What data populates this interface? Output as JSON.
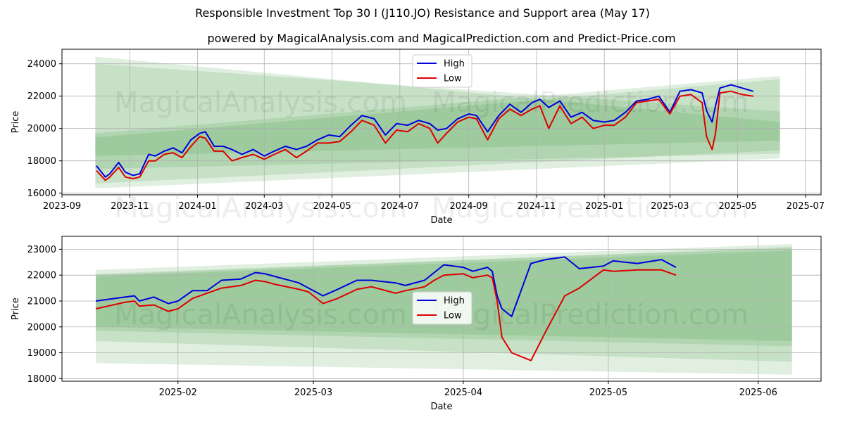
{
  "page": {
    "title": "Responsible Investment Top 30 I (J110.JO) Resistance and Support area (May 17)",
    "subtitle": "powered by MagicalAnalysis.com and MagicalPrediction.com and Predict-Price.com"
  },
  "watermarks": [
    "MagicalAnalysis.com",
    "MagicalPrediction.com"
  ],
  "colors": {
    "high": "#0000dd",
    "low": "#dd0000",
    "band": "#2e8b2e",
    "grid": "#b0b0b0"
  },
  "chart_data": [
    {
      "type": "line",
      "xlabel": "Date",
      "ylabel": "Price",
      "xlim": [
        "2023-09-01",
        "2025-07-15"
      ],
      "ylim": [
        15900,
        24900
      ],
      "grid": true,
      "legend": "upper-center",
      "legend_labels": {
        "high": "High",
        "low": "Low"
      },
      "xticks": [
        "2023-09",
        "2023-11",
        "2024-01",
        "2024-03",
        "2024-05",
        "2024-07",
        "2024-09",
        "2024-11",
        "2025-01",
        "2025-03",
        "2025-05",
        "2025-07"
      ],
      "yticks": [
        16000,
        18000,
        20000,
        22000,
        24000
      ],
      "series": [
        {
          "name": "High",
          "x": [
            "2023-10-02",
            "2023-10-10",
            "2023-10-14",
            "2023-10-22",
            "2023-10-28",
            "2023-11-04",
            "2023-11-10",
            "2023-11-18",
            "2023-11-24",
            "2023-12-02",
            "2023-12-10",
            "2023-12-18",
            "2023-12-26",
            "2024-01-03",
            "2024-01-08",
            "2024-01-16",
            "2024-01-24",
            "2024-02-01",
            "2024-02-10",
            "2024-02-20",
            "2024-03-01",
            "2024-03-10",
            "2024-03-20",
            "2024-03-30",
            "2024-04-08",
            "2024-04-18",
            "2024-04-28",
            "2024-05-08",
            "2024-05-18",
            "2024-05-28",
            "2024-06-08",
            "2024-06-18",
            "2024-06-28",
            "2024-07-08",
            "2024-07-18",
            "2024-07-28",
            "2024-08-04",
            "2024-08-12",
            "2024-08-22",
            "2024-09-01",
            "2024-09-08",
            "2024-09-18",
            "2024-09-28",
            "2024-10-08",
            "2024-10-18",
            "2024-10-28",
            "2024-11-04",
            "2024-11-12",
            "2024-11-22",
            "2024-12-02",
            "2024-12-12",
            "2024-12-22",
            "2025-01-01",
            "2025-01-10",
            "2025-01-20",
            "2025-01-30",
            "2025-02-09",
            "2025-02-19",
            "2025-03-01",
            "2025-03-10",
            "2025-03-20",
            "2025-03-30",
            "2025-04-03",
            "2025-04-08",
            "2025-04-11",
            "2025-04-15",
            "2025-04-25",
            "2025-05-05",
            "2025-05-15"
          ],
          "values": [
            17700,
            17000,
            17200,
            17900,
            17300,
            17100,
            17200,
            18400,
            18300,
            18600,
            18800,
            18500,
            19300,
            19700,
            19800,
            18900,
            18900,
            18700,
            18400,
            18700,
            18300,
            18600,
            18900,
            18700,
            18900,
            19300,
            19600,
            19500,
            20200,
            20800,
            20600,
            19600,
            20300,
            20200,
            20500,
            20300,
            19900,
            20000,
            20600,
            20900,
            20800,
            19800,
            20800,
            21500,
            21000,
            21600,
            21800,
            21300,
            21700,
            20700,
            21000,
            20500,
            20400,
            20500,
            21000,
            21700,
            21800,
            22000,
            21000,
            22300,
            22400,
            22200,
            21100,
            20400,
            21400,
            22500,
            22700,
            22500,
            22300
          ]
        },
        {
          "name": "Low",
          "x": [
            "2023-10-02",
            "2023-10-10",
            "2023-10-14",
            "2023-10-22",
            "2023-10-28",
            "2023-11-04",
            "2023-11-10",
            "2023-11-18",
            "2023-11-24",
            "2023-12-02",
            "2023-12-10",
            "2023-12-18",
            "2023-12-26",
            "2024-01-03",
            "2024-01-08",
            "2024-01-16",
            "2024-01-24",
            "2024-02-01",
            "2024-02-10",
            "2024-02-20",
            "2024-03-01",
            "2024-03-10",
            "2024-03-20",
            "2024-03-30",
            "2024-04-08",
            "2024-04-18",
            "2024-04-28",
            "2024-05-08",
            "2024-05-18",
            "2024-05-28",
            "2024-06-08",
            "2024-06-18",
            "2024-06-28",
            "2024-07-08",
            "2024-07-18",
            "2024-07-28",
            "2024-08-04",
            "2024-08-12",
            "2024-08-22",
            "2024-09-01",
            "2024-09-08",
            "2024-09-18",
            "2024-09-28",
            "2024-10-08",
            "2024-10-18",
            "2024-10-28",
            "2024-11-04",
            "2024-11-12",
            "2024-11-22",
            "2024-12-02",
            "2024-12-12",
            "2024-12-22",
            "2025-01-01",
            "2025-01-10",
            "2025-01-20",
            "2025-01-30",
            "2025-02-09",
            "2025-02-19",
            "2025-03-01",
            "2025-03-10",
            "2025-03-20",
            "2025-03-30",
            "2025-04-03",
            "2025-04-08",
            "2025-04-11",
            "2025-04-15",
            "2025-04-25",
            "2025-05-05",
            "2025-05-15"
          ],
          "values": [
            17400,
            16800,
            17000,
            17600,
            17000,
            16900,
            17000,
            18000,
            18000,
            18400,
            18500,
            18200,
            18900,
            19500,
            19400,
            18600,
            18600,
            18000,
            18200,
            18400,
            18100,
            18400,
            18700,
            18200,
            18600,
            19100,
            19100,
            19200,
            19800,
            20500,
            20200,
            19100,
            19900,
            19800,
            20300,
            20000,
            19100,
            19700,
            20400,
            20700,
            20600,
            19300,
            20600,
            21200,
            20800,
            21200,
            21400,
            20000,
            21400,
            20300,
            20700,
            20000,
            20200,
            20200,
            20700,
            21600,
            21700,
            21800,
            20900,
            22000,
            22100,
            21600,
            19500,
            18700,
            19700,
            22200,
            22300,
            22100,
            22000
          ]
        }
      ],
      "bands": [
        {
          "start": "2023-10-01",
          "end": "2025-06-08",
          "upper": [
            24450,
            20400
          ],
          "lower": [
            16300,
            18150
          ]
        },
        {
          "start": "2023-10-01",
          "end": "2025-06-08",
          "upper": [
            24000,
            21050
          ],
          "lower": [
            16600,
            18650
          ]
        },
        {
          "start": "2023-10-01",
          "end": "2025-06-08",
          "upper": [
            19700,
            23250
          ],
          "lower": [
            17500,
            18450
          ]
        },
        {
          "start": "2023-10-01",
          "end": "2025-06-08",
          "upper": [
            19450,
            23050
          ],
          "lower": [
            18300,
            19250
          ]
        }
      ]
    },
    {
      "type": "line",
      "xlabel": "Date",
      "ylabel": "Price",
      "xlim": [
        "2025-01-08",
        "2025-06-14"
      ],
      "ylim": [
        17900,
        23500
      ],
      "grid": true,
      "legend": "center",
      "legend_labels": {
        "high": "High",
        "low": "Low"
      },
      "xticks": [
        "2025-02",
        "2025-03",
        "2025-04",
        "2025-05",
        "2025-06"
      ],
      "yticks": [
        18000,
        19000,
        20000,
        21000,
        22000,
        23000
      ],
      "series": [
        {
          "name": "High",
          "x": [
            "2025-01-15",
            "2025-01-21",
            "2025-01-23",
            "2025-01-24",
            "2025-01-27",
            "2025-01-30",
            "2025-02-01",
            "2025-02-04",
            "2025-02-07",
            "2025-02-10",
            "2025-02-14",
            "2025-02-17",
            "2025-02-19",
            "2025-02-21",
            "2025-02-26",
            "2025-02-28",
            "2025-03-03",
            "2025-03-06",
            "2025-03-10",
            "2025-03-13",
            "2025-03-18",
            "2025-03-20",
            "2025-03-24",
            "2025-03-26",
            "2025-03-28",
            "2025-04-01",
            "2025-04-03",
            "2025-04-06",
            "2025-04-07",
            "2025-04-08",
            "2025-04-09",
            "2025-04-11",
            "2025-04-15",
            "2025-04-18",
            "2025-04-22",
            "2025-04-25",
            "2025-04-30",
            "2025-05-02",
            "2025-05-07",
            "2025-05-12",
            "2025-05-15"
          ],
          "values": [
            21000,
            21150,
            21200,
            21000,
            21150,
            20900,
            21000,
            21400,
            21400,
            21800,
            21850,
            22100,
            22050,
            21950,
            21700,
            21500,
            21200,
            21450,
            21800,
            21800,
            21700,
            21600,
            21800,
            22100,
            22400,
            22300,
            22150,
            22300,
            22150,
            21200,
            20700,
            20400,
            22450,
            22600,
            22700,
            22250,
            22350,
            22550,
            22450,
            22600,
            22300
          ]
        },
        {
          "name": "Low",
          "x": [
            "2025-01-15",
            "2025-01-21",
            "2025-01-23",
            "2025-01-24",
            "2025-01-27",
            "2025-01-30",
            "2025-02-01",
            "2025-02-04",
            "2025-02-07",
            "2025-02-10",
            "2025-02-14",
            "2025-02-17",
            "2025-02-19",
            "2025-02-21",
            "2025-02-26",
            "2025-02-28",
            "2025-03-03",
            "2025-03-06",
            "2025-03-10",
            "2025-03-13",
            "2025-03-18",
            "2025-03-20",
            "2025-03-24",
            "2025-03-26",
            "2025-03-28",
            "2025-04-01",
            "2025-04-03",
            "2025-04-06",
            "2025-04-07",
            "2025-04-08",
            "2025-04-09",
            "2025-04-11",
            "2025-04-15",
            "2025-04-18",
            "2025-04-22",
            "2025-04-25",
            "2025-04-30",
            "2025-05-02",
            "2025-05-07",
            "2025-05-12",
            "2025-05-15"
          ],
          "values": [
            20700,
            20950,
            21000,
            20800,
            20850,
            20600,
            20700,
            21100,
            21300,
            21500,
            21600,
            21800,
            21750,
            21650,
            21450,
            21350,
            20900,
            21100,
            21450,
            21550,
            21300,
            21400,
            21550,
            21800,
            22000,
            22050,
            21900,
            22000,
            21900,
            21000,
            19600,
            19000,
            18700,
            19800,
            21200,
            21500,
            22200,
            22150,
            22200,
            22200,
            22000
          ]
        }
      ],
      "bands": [
        {
          "start": "2025-01-15",
          "end": "2025-06-08",
          "upper": [
            22200,
            23200
          ],
          "lower": [
            18600,
            18150
          ]
        },
        {
          "start": "2025-01-15",
          "end": "2025-06-08",
          "upper": [
            22000,
            23100
          ],
          "lower": [
            19450,
            18650
          ]
        },
        {
          "start": "2025-01-15",
          "end": "2025-06-08",
          "upper": [
            22050,
            23050
          ],
          "lower": [
            19850,
            19250
          ]
        },
        {
          "start": "2025-01-15",
          "end": "2025-06-08",
          "upper": [
            21950,
            22950
          ],
          "lower": [
            20000,
            19450
          ]
        }
      ]
    }
  ]
}
